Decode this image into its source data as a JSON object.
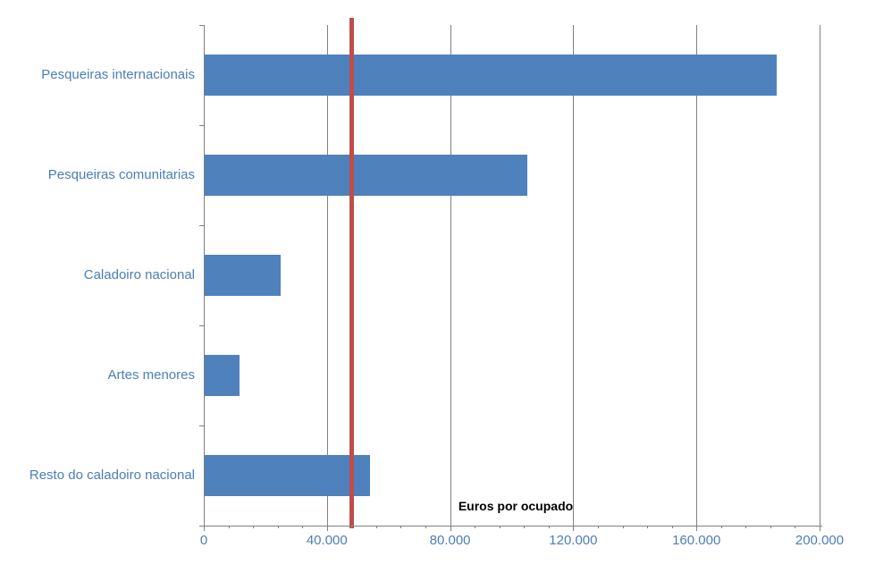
{
  "chart_data": {
    "type": "bar",
    "orientation": "horizontal",
    "categories": [
      "Pesqueiras internacionais",
      "Pesqueiras comunitarias",
      "Caladoiro nacional",
      "Artes menores",
      "Resto do caladoiro nacional"
    ],
    "values": [
      186000,
      105000,
      25000,
      11700,
      54000
    ],
    "xlabel": "Euros por ocupado",
    "ylabel": "",
    "xlim": [
      0,
      200000
    ],
    "xticks": [
      0,
      40000,
      80000,
      120000,
      160000,
      200000
    ],
    "xtick_labels": [
      "0",
      "40.000",
      "80.000",
      "120.000",
      "160.000",
      "200.000"
    ],
    "minor_tick_interval": 8000,
    "grid": true,
    "legend": "none",
    "reference_line": {
      "value": 48000,
      "color": "#bf4d4a"
    },
    "colors": {
      "bar": "#4f81bd",
      "label_text": "#4a7ebb",
      "axis": "#7f7f7f",
      "gridline": "#808080"
    }
  }
}
